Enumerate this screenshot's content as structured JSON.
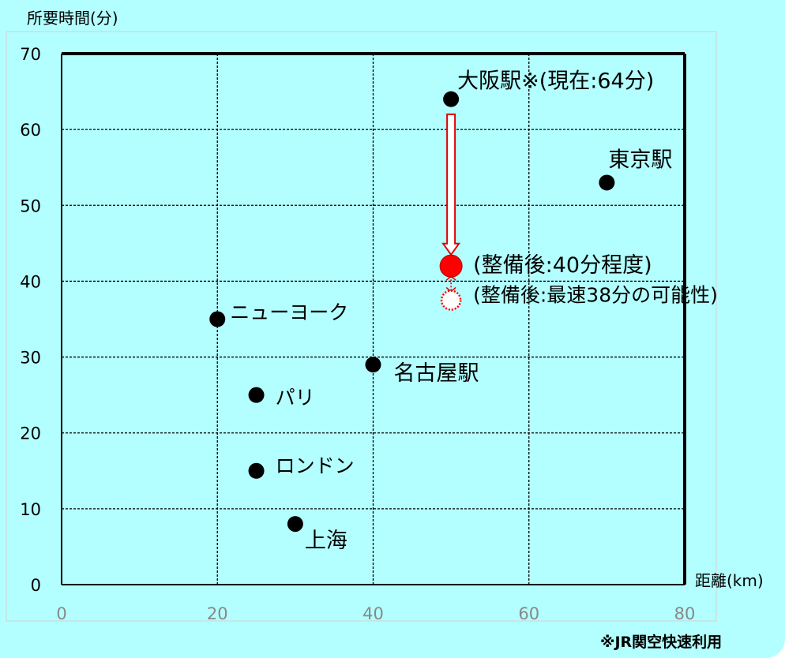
{
  "chart_data": {
    "type": "scatter",
    "ylabel": "所要時間(分)",
    "xlabel": "距離(km)",
    "xlim": [
      0,
      80
    ],
    "ylim": [
      0,
      70
    ],
    "x_ticks": [
      0,
      20,
      40,
      60,
      80
    ],
    "y_ticks": [
      0,
      10,
      20,
      30,
      40,
      50,
      60,
      70
    ],
    "grid": true,
    "points": [
      {
        "label": "大阪駅※(現在:64分)",
        "x": 50,
        "y": 64
      },
      {
        "label": "東京駅",
        "x": 70,
        "y": 53
      },
      {
        "label": "ニューヨーク",
        "x": 20,
        "y": 35
      },
      {
        "label": "名古屋駅",
        "x": 40,
        "y": 29
      },
      {
        "label": "パリ",
        "x": 25,
        "y": 25
      },
      {
        "label": "ロンドン",
        "x": 25,
        "y": 15
      },
      {
        "label": "上海",
        "x": 30,
        "y": 8
      }
    ],
    "highlight_points": [
      {
        "label": "(整備後:40分程度)",
        "x": 50,
        "y": 42,
        "color": "#ff0000",
        "style": "filled"
      },
      {
        "label": "(整備後:最速38分の可能性)",
        "x": 50,
        "y": 37.5,
        "color": "#ff0000",
        "style": "dotted-outline"
      }
    ],
    "annotation_arrow": {
      "from_y": 62,
      "to_y": 43.5,
      "x": 50,
      "color": "#e00000"
    },
    "footnote": "※JR関空快速利用"
  },
  "colors": {
    "background": "#b3ffff",
    "plot_area": "#b3ffff",
    "point": "#000000",
    "accent": "#ff0000"
  }
}
